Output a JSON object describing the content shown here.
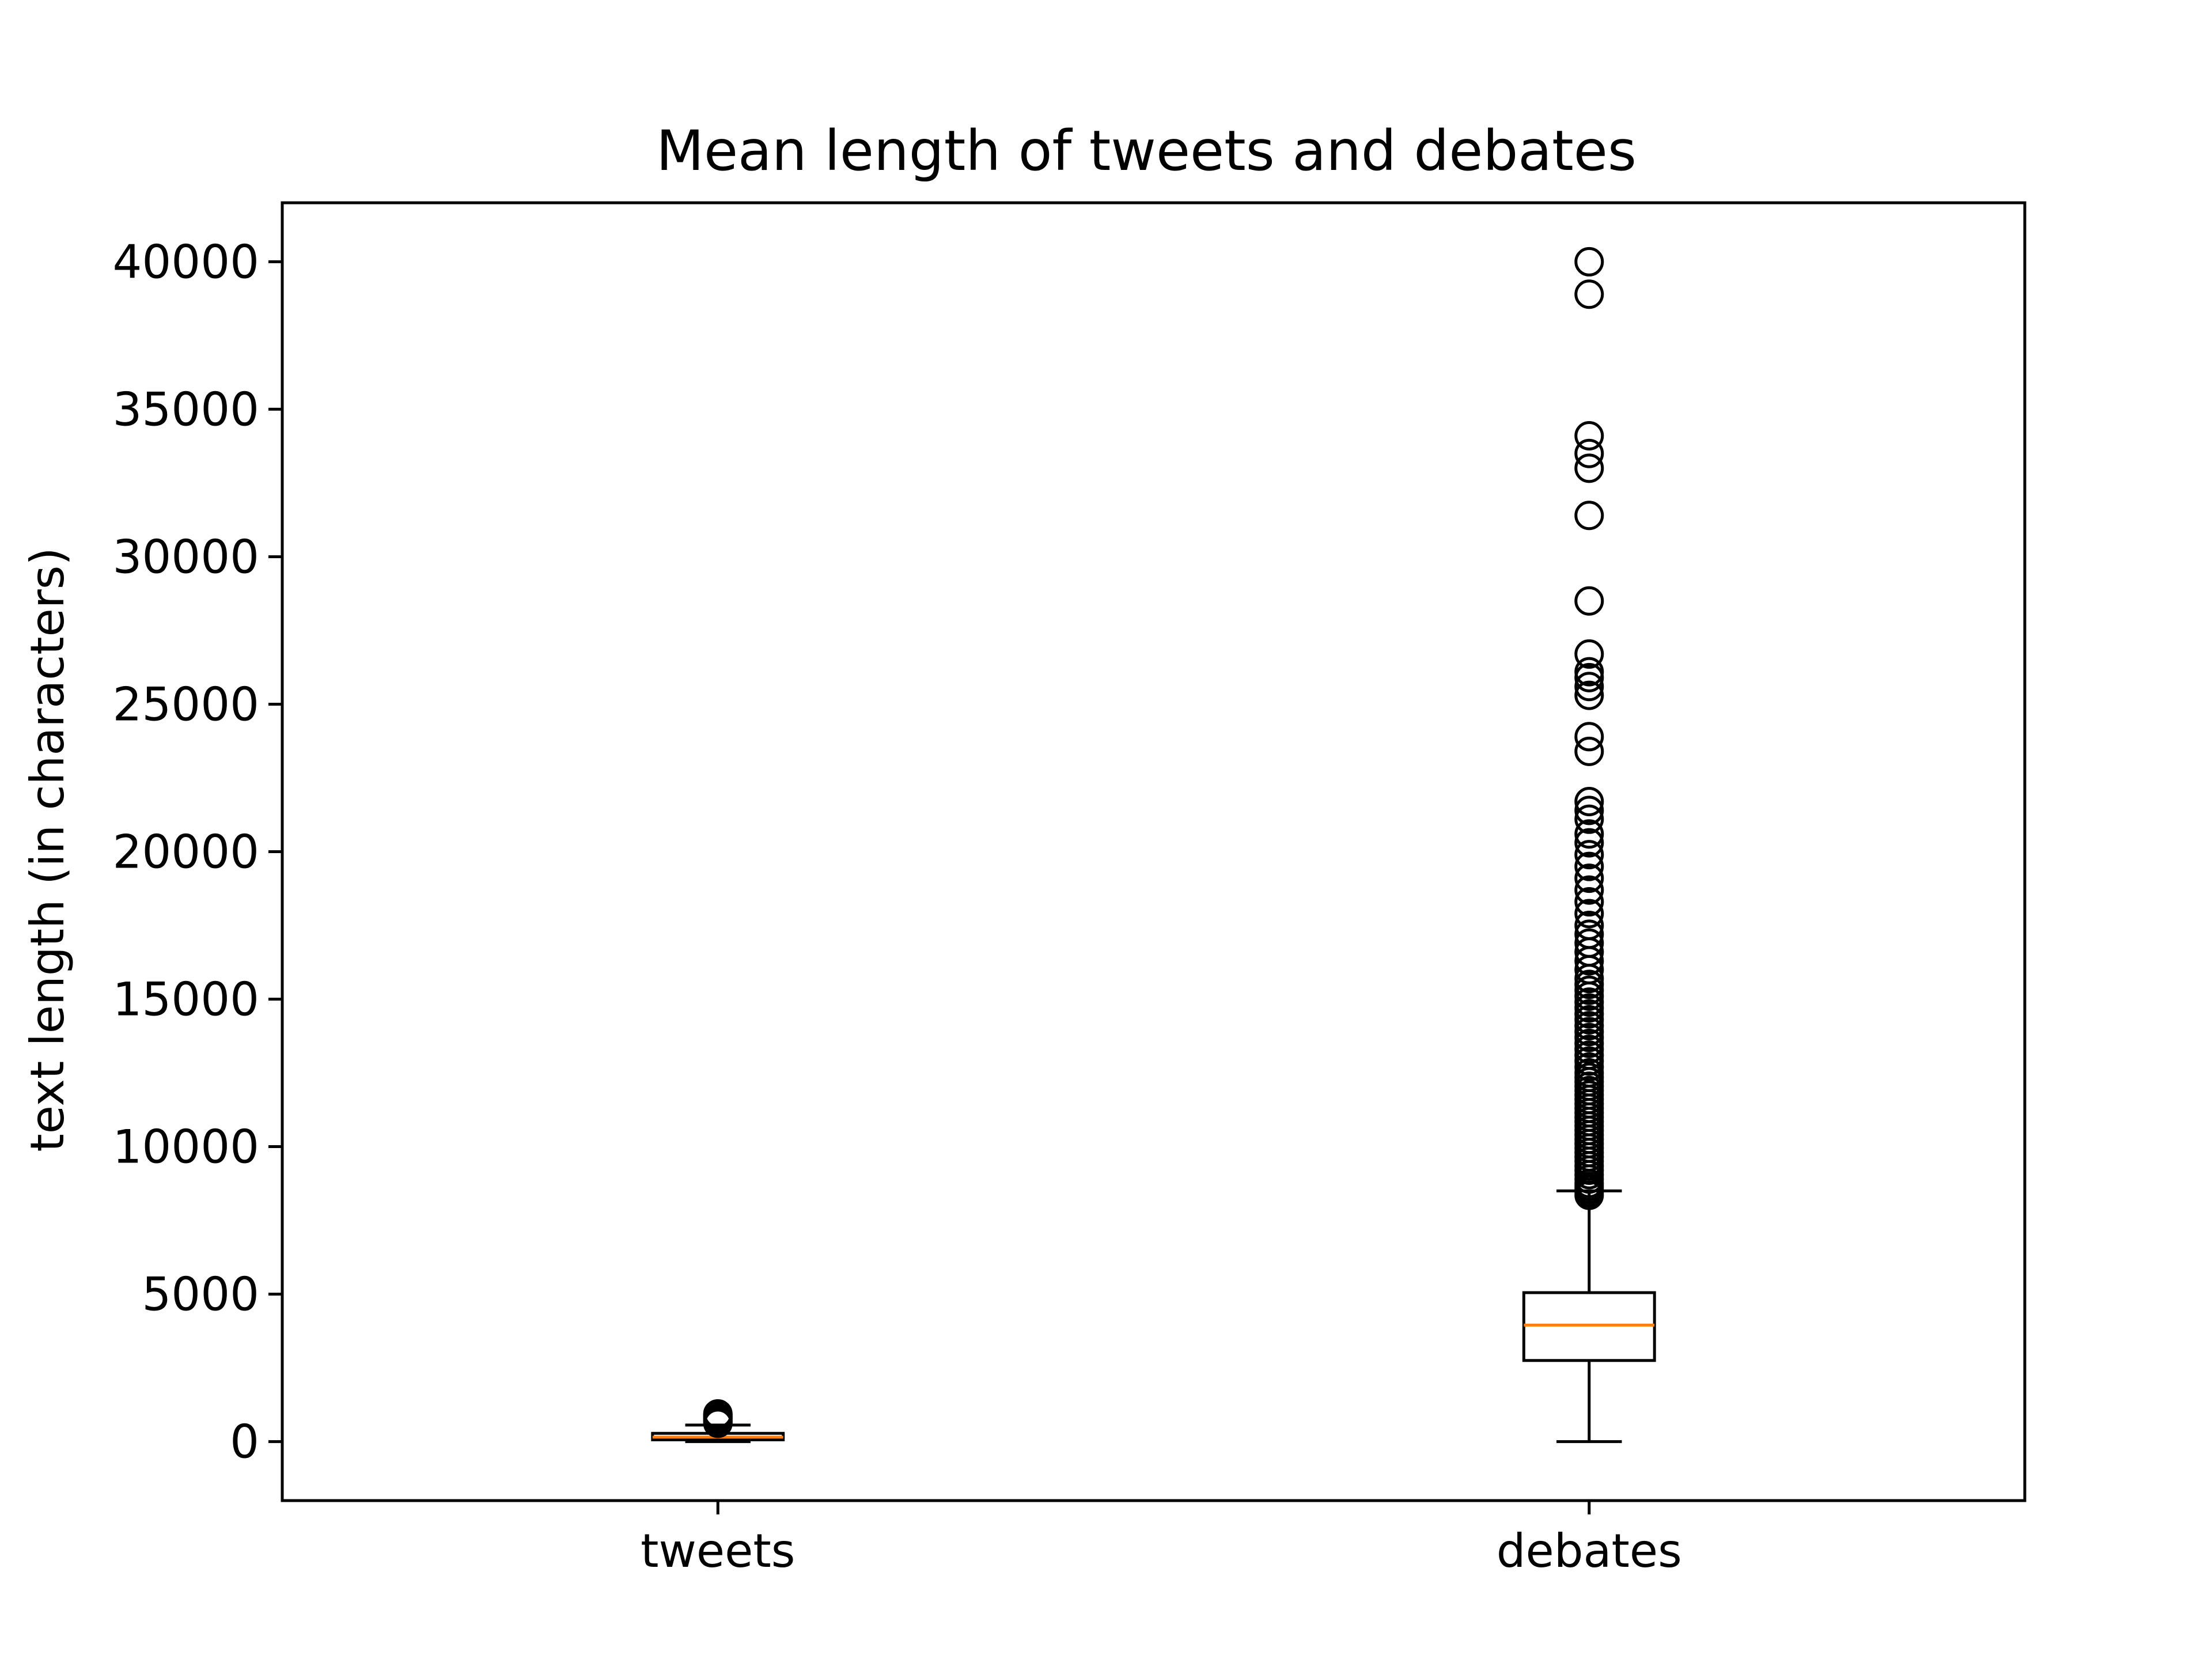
{
  "chart_data": {
    "type": "box",
    "title": "Mean length of tweets and debates",
    "xlabel": "",
    "ylabel": "text length (in characters)",
    "ylim": [
      -2000,
      42000
    ],
    "yticks": [
      0,
      5000,
      10000,
      15000,
      20000,
      25000,
      30000,
      35000,
      40000
    ],
    "ytick_labels": [
      "0",
      "5000",
      "10000",
      "15000",
      "20000",
      "25000",
      "30000",
      "35000",
      "40000"
    ],
    "categories": [
      "tweets",
      "debates"
    ],
    "grid": false,
    "legend": "none",
    "colors": {
      "box": "#000000",
      "median": "#ff7f0e",
      "flier": "#000000"
    },
    "boxes": [
      {
        "name": "tweets",
        "whisker_low": 0,
        "q1": 60,
        "median": 150,
        "q3": 280,
        "whisker_high": 560,
        "fliers": [
          620,
          660,
          700,
          740,
          780,
          820,
          860,
          900,
          940
        ]
      },
      {
        "name": "debates",
        "whisker_low": 0,
        "q1": 2750,
        "median": 3950,
        "q3": 5050,
        "whisker_high": 8500,
        "fliers": [
          8350,
          8450,
          8550,
          8650,
          8750,
          8900,
          9050,
          9200,
          9350,
          9500,
          9650,
          9800,
          9950,
          10100,
          10250,
          10400,
          10550,
          10700,
          10850,
          11000,
          11150,
          11300,
          11450,
          11600,
          11750,
          11900,
          12050,
          12200,
          12350,
          12500,
          12700,
          12900,
          13100,
          13300,
          13500,
          13700,
          13900,
          14100,
          14300,
          14500,
          14700,
          14900,
          15100,
          15300,
          15500,
          15700,
          16000,
          16300,
          16600,
          16900,
          17200,
          17500,
          17900,
          18300,
          18700,
          19100,
          19500,
          19900,
          20300,
          20600,
          21100,
          21400,
          21700,
          23400,
          23900,
          25300,
          25600,
          25900,
          26100,
          26700,
          28500,
          31400,
          33000,
          33500,
          34100,
          38900,
          40000
        ]
      }
    ]
  }
}
